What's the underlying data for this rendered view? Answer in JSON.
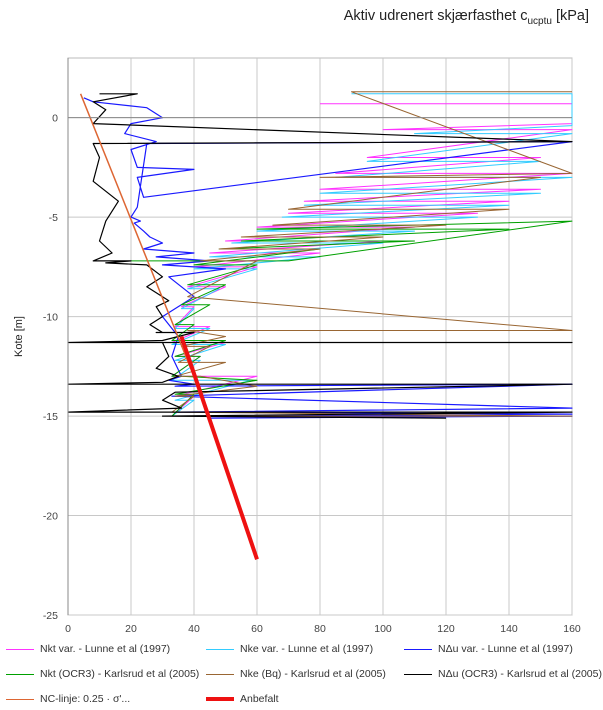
{
  "title_main": "Aktiv udrenert skjærfasthet c",
  "title_sub": "ucptu",
  "title_unit": "[kPa]",
  "chart_data": {
    "type": "line",
    "title": "Aktiv udrenert skjærfasthet cucptu [kPa]",
    "xlabel": "",
    "ylabel": "Kote [m]",
    "xlim": [
      0,
      160
    ],
    "ylim": [
      -25,
      3
    ],
    "x_ticks": [
      0,
      20,
      40,
      60,
      80,
      100,
      120,
      140,
      160
    ],
    "y_ticks": [
      0,
      -5,
      -10,
      -15,
      -20,
      -25
    ],
    "x_axis_position": "top",
    "grid": true,
    "legend_position": "bottom",
    "series": [
      {
        "name": "Nkt var. - Lunne et al (1997)",
        "color": "#ff33ff",
        "width": 1,
        "x": [
          80,
          160,
          160,
          100,
          160,
          95,
          150,
          85,
          160,
          80,
          150,
          75,
          140,
          70,
          130,
          60,
          110,
          50,
          100,
          45,
          80,
          40,
          60,
          38,
          50,
          36,
          40,
          34,
          45,
          33,
          50,
          34,
          42,
          33,
          60,
          34,
          40,
          33
        ],
        "y": [
          0.7,
          0.7,
          -0.3,
          -0.6,
          -0.6,
          -2.0,
          -2.0,
          -2.8,
          -2.8,
          -3.6,
          -3.6,
          -4.2,
          -4.2,
          -4.8,
          -4.8,
          -5.5,
          -5.5,
          -6.2,
          -6.2,
          -6.8,
          -6.8,
          -7.5,
          -7.5,
          -8.5,
          -8.5,
          -9.5,
          -9.5,
          -10.5,
          -10.5,
          -11.3,
          -11.3,
          -12.0,
          -12.0,
          -13.0,
          -13.0,
          -14.0,
          -14.0,
          -15.0
        ]
      },
      {
        "name": "Nke var. - Lunne et al (1997)",
        "color": "#33ccff",
        "width": 1,
        "x": [
          90,
          160,
          160,
          110,
          160,
          95,
          150,
          85,
          160,
          80,
          150,
          75,
          140,
          68,
          130,
          60,
          110,
          52,
          100,
          45,
          80,
          40,
          60,
          38,
          48,
          36,
          40,
          34,
          45,
          33,
          50,
          34,
          42,
          33,
          58,
          34,
          40,
          33
        ],
        "y": [
          1.2,
          1.2,
          -0.4,
          -0.8,
          -0.8,
          -2.2,
          -2.2,
          -3.0,
          -3.0,
          -3.8,
          -3.8,
          -4.4,
          -4.4,
          -5.0,
          -5.0,
          -5.7,
          -5.7,
          -6.3,
          -6.3,
          -7.0,
          -7.0,
          -7.6,
          -7.6,
          -8.6,
          -8.6,
          -9.6,
          -9.6,
          -10.6,
          -10.6,
          -11.4,
          -11.4,
          -12.2,
          -12.2,
          -13.2,
          -13.2,
          -14.2,
          -14.2,
          -15.0
        ]
      },
      {
        "name": "NΔu var. - Lunne et al (1997)",
        "color": "#1a1aff",
        "width": 1.2,
        "x": [
          5,
          8,
          25,
          30,
          20,
          18,
          28,
          20,
          22,
          40,
          22,
          24,
          160,
          25,
          22,
          20,
          23,
          21,
          24,
          26,
          30,
          24,
          40,
          28,
          45,
          30,
          50,
          32,
          40,
          30,
          35,
          33,
          36,
          32,
          40,
          34,
          160,
          33,
          160,
          35,
          160,
          40,
          160,
          45
        ],
        "y": [
          1.0,
          0.8,
          0.5,
          0.0,
          -0.3,
          -0.8,
          -1.2,
          -1.6,
          -2.5,
          -2.6,
          -3.0,
          -4.0,
          -1.2,
          -1.3,
          -4.5,
          -5.0,
          -5.2,
          -5.3,
          -5.7,
          -6.0,
          -6.3,
          -6.6,
          -6.8,
          -7.0,
          -7.2,
          -7.4,
          -7.6,
          -8.0,
          -9.0,
          -10.0,
          -11.0,
          -12.0,
          -13.0,
          -13.2,
          -13.4,
          -13.5,
          -13.4,
          -14.0,
          -14.6,
          -14.8,
          -14.9,
          -15.0,
          -15.0,
          -15.1
        ]
      },
      {
        "name": "Nkt (OCR3) - Karlsrud et al (2005)",
        "color": "#00a000",
        "width": 1,
        "x": [
          20,
          70,
          160,
          60,
          140,
          55,
          110,
          48,
          80,
          40,
          60,
          38,
          50,
          36,
          45,
          34,
          40,
          33,
          50,
          34,
          42,
          33,
          36,
          60,
          34,
          40,
          33
        ],
        "y": [
          -7.2,
          -7.2,
          -5.2,
          -5.6,
          -5.6,
          -6.2,
          -6.2,
          -6.6,
          -6.6,
          -7.4,
          -7.4,
          -8.4,
          -8.4,
          -9.4,
          -9.4,
          -10.4,
          -10.4,
          -11.2,
          -11.2,
          -12.0,
          -12.0,
          -13.0,
          -13.0,
          -13.2,
          -13.9,
          -13.9,
          -15.0
        ]
      },
      {
        "name": "Nke (Bq) - Karlsrud et al (2005)",
        "color": "#996633",
        "width": 1,
        "x": [
          160,
          90,
          160,
          80,
          150,
          70,
          140,
          65,
          120,
          55,
          100,
          48,
          80,
          42,
          60,
          38,
          160,
          38,
          50,
          36,
          45,
          35,
          50,
          34,
          42,
          60,
          34,
          40,
          33,
          160,
          33
        ],
        "y": [
          1.3,
          1.3,
          -2.8,
          -3.0,
          -3.0,
          -4.6,
          -4.6,
          -5.4,
          -5.4,
          -6.0,
          -6.0,
          -6.6,
          -6.6,
          -7.2,
          -7.2,
          -9.0,
          -10.7,
          -10.7,
          -11.0,
          -11.5,
          -11.5,
          -12.3,
          -12.3,
          -13.0,
          -13.0,
          -13.5,
          -14.0,
          -14.0,
          -14.8,
          -15.0,
          -15.0
        ]
      },
      {
        "name": "NΔu (OCR3) - Karlsrud et al (2005)",
        "color": "#000000",
        "width": 1.2,
        "x": [
          10,
          22,
          8,
          12,
          8,
          160,
          8,
          10,
          8,
          16,
          12,
          10,
          14,
          8,
          20,
          12,
          25,
          30,
          25,
          32,
          28,
          30,
          26,
          30,
          28,
          40,
          30,
          0,
          160,
          30,
          32,
          28,
          35,
          30,
          0,
          160,
          34,
          30,
          36,
          0,
          160,
          30,
          32,
          120
        ],
        "y": [
          1.2,
          1.2,
          0.8,
          0.4,
          -0.3,
          -1.2,
          -1.3,
          -2.0,
          -3.2,
          -4.2,
          -5.2,
          -6.2,
          -6.8,
          -7.2,
          -7.2,
          -7.3,
          -7.4,
          -8.0,
          -8.5,
          -9.2,
          -9.5,
          -10.0,
          -10.4,
          -10.8,
          -10.8,
          -10.8,
          -11.2,
          -11.3,
          -11.3,
          -11.3,
          -12.0,
          -12.6,
          -13.0,
          -13.3,
          -13.4,
          -13.4,
          -13.8,
          -14.2,
          -14.6,
          -14.8,
          -14.8,
          -15.0,
          -15.0,
          -15.1
        ]
      },
      {
        "name": "NC-linje: 0.25 · σ'...",
        "color": "#dd6633",
        "width": 1.5,
        "x": [
          4,
          45
        ],
        "y": [
          1.2,
          -15.0
        ]
      },
      {
        "name": "Anbefalt",
        "color": "#ee1111",
        "width": 4,
        "x": [
          36,
          60
        ],
        "y": [
          -11.0,
          -22.2
        ]
      }
    ]
  }
}
